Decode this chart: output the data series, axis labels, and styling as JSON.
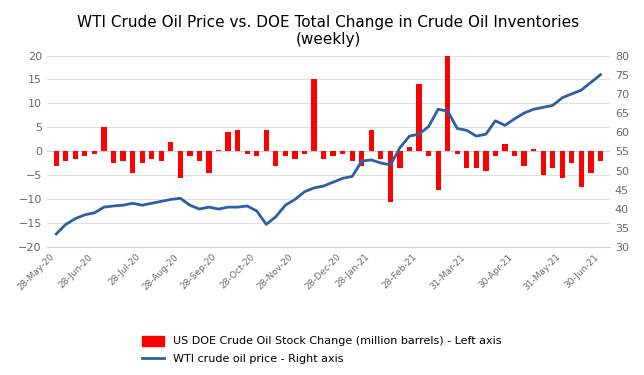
{
  "title": "WTI Crude Oil Price vs. DOE Total Change in Crude Oil Inventories\n(weekly)",
  "title_fontsize": 11,
  "bar_color": "#FF0000",
  "line_color": "#2E5FA3",
  "background_color": "#FFFFFF",
  "left_ylim": [
    -20,
    20
  ],
  "right_ylim": [
    30,
    80
  ],
  "left_yticks": [
    -20,
    -15,
    -10,
    -5,
    0,
    5,
    10,
    15,
    20
  ],
  "right_yticks": [
    30,
    35,
    40,
    45,
    50,
    55,
    60,
    65,
    70,
    75,
    80
  ],
  "legend1_label": "US DOE Crude Oil Stock Change (million barrels) - Left axis",
  "legend2_label": "WTI crude oil price - Right axis",
  "bar_values": [
    -3.0,
    -2.0,
    -1.5,
    -1.0,
    -0.5,
    5.0,
    -2.5,
    -2.0,
    -4.5,
    -2.5,
    -1.5,
    -2.0,
    2.0,
    -5.5,
    -1.0,
    -2.0,
    -4.5,
    0.4,
    4.0,
    4.5,
    -0.5,
    -1.0,
    4.5,
    -3.0,
    -1.0,
    -1.5,
    -0.5,
    15.2,
    -1.5,
    -1.0,
    -0.5,
    -2.0,
    -3.0,
    4.5,
    -1.5,
    -10.5,
    -3.5,
    1.0,
    14.0,
    -1.0,
    -8.0,
    20.0,
    -0.5,
    -3.5,
    -3.5,
    -4.0,
    -1.0,
    1.5,
    -1.0,
    -3.0,
    0.5,
    -5.0,
    -3.5,
    -5.5,
    -2.5,
    -7.5,
    -4.5,
    -2.0
  ],
  "wti_prices": [
    33.5,
    36.0,
    37.5,
    38.5,
    39.0,
    40.5,
    40.8,
    41.0,
    41.5,
    41.0,
    41.5,
    42.0,
    42.5,
    42.8,
    41.0,
    40.0,
    40.5,
    40.0,
    40.5,
    40.5,
    40.8,
    39.5,
    36.0,
    38.0,
    41.0,
    42.5,
    44.5,
    45.5,
    46.0,
    47.0,
    48.0,
    48.5,
    52.5,
    52.8,
    52.0,
    51.5,
    56.0,
    59.0,
    59.5,
    61.5,
    66.0,
    65.5,
    61.0,
    60.5,
    59.0,
    59.5,
    63.0,
    61.8,
    63.5,
    65.0,
    66.0,
    66.5,
    67.0,
    69.0,
    70.0,
    71.0,
    73.0,
    75.0
  ],
  "xtick_labels": [
    "28-May-20",
    "28-Jun-20",
    "28-Jul-20",
    "28-Aug-20",
    "28-Sep-20",
    "28-Oct-20",
    "28-Nov-20",
    "28-Dec-20",
    "28-Jan-21",
    "28-Feb-21",
    "31-Mar-21",
    "30-Apr-21",
    "31-May-21",
    "30-Jun-21"
  ],
  "xtick_positions": [
    0,
    4,
    9,
    13,
    17,
    21,
    25,
    30,
    33,
    38,
    43,
    48,
    53,
    57
  ]
}
